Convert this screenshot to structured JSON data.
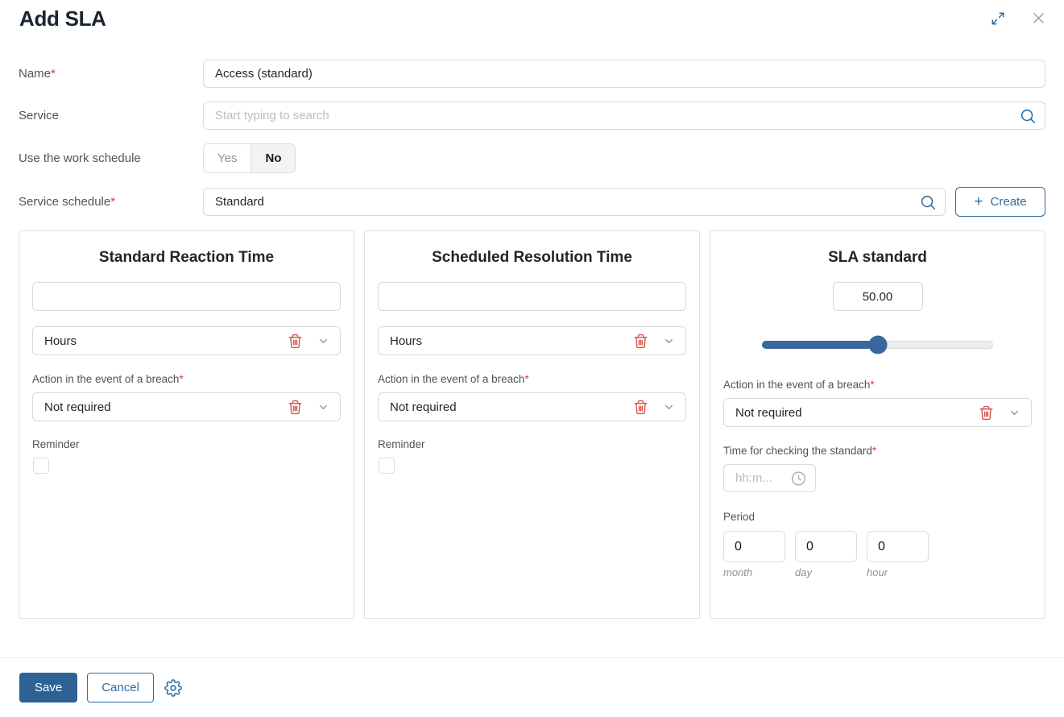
{
  "dialog": {
    "title": "Add SLA",
    "required_mark": "*"
  },
  "form": {
    "name": {
      "label": "Name",
      "value": "Access (standard)"
    },
    "service": {
      "label": "Service",
      "placeholder": "Start typing to search"
    },
    "work_schedule": {
      "label": "Use the work schedule",
      "options": [
        "Yes",
        "No"
      ],
      "selected": "No"
    },
    "service_schedule": {
      "label": "Service schedule",
      "value": "Standard",
      "create_label": "Create"
    }
  },
  "panels": [
    {
      "title": "Standard Reaction Time",
      "time_value": "",
      "unit": "Hours",
      "breach_label": "Action in the event of a breach",
      "breach_value": "Not required",
      "reminder_label": "Reminder",
      "reminder_checked": false
    },
    {
      "title": "Scheduled Resolution Time",
      "time_value": "",
      "unit": "Hours",
      "breach_label": "Action in the event of a breach",
      "breach_value": "Not required",
      "reminder_label": "Reminder",
      "reminder_checked": false
    }
  ],
  "sla_panel": {
    "title": "SLA standard",
    "value": "50.00",
    "slider_percent": 50,
    "breach_label": "Action in the event of a breach",
    "breach_value": "Not required",
    "time_label": "Time for checking the standard",
    "time_placeholder": "hh:m...",
    "period_label": "Period",
    "period_fields": [
      {
        "value": "0",
        "unit": "month"
      },
      {
        "value": "0",
        "unit": "day"
      },
      {
        "value": "0",
        "unit": "hour"
      }
    ]
  },
  "footer": {
    "save_label": "Save",
    "cancel_label": "Cancel"
  },
  "colors": {
    "accent_blue": "#2d6da3",
    "save_button_bg": "#2f6294",
    "slider_blue": "#38689c",
    "danger_red": "#d9534f",
    "required_red": "#e23c33"
  }
}
